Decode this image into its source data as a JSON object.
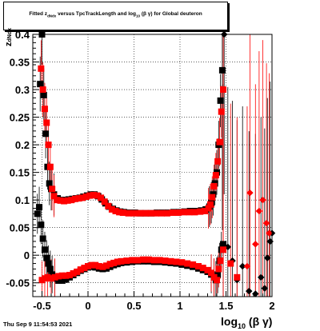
{
  "header": {
    "title_pre": "Fitted  z",
    "title_sub": "dNdx",
    "title_mid": "  versus TpcTrackLength and log",
    "title_sub2": "10",
    "title_post": " (β γ) for Global deuteron"
  },
  "footer": {
    "timestamp": "Thu Sep  9 11:54:53 2021"
  },
  "axes": {
    "xlabel_main": "log",
    "xlabel_sub": "10",
    "xlabel_tail": " (β γ)",
    "ylabel_main": "z",
    "ylabel_sub": "dNdx"
  },
  "colors": {
    "series_black": "#000000",
    "series_red": "#ff0000",
    "grid": "#000000"
  },
  "chart_data": {
    "type": "scatter",
    "xlim": [
      -0.6,
      2.0
    ],
    "ylim": [
      -0.075,
      0.4
    ],
    "xticks": [
      -0.5,
      0,
      0.5,
      1,
      1.5,
      2
    ],
    "xtick_labels": [
      "-0.5",
      "0",
      "0.5",
      "1",
      "1.5",
      "2"
    ],
    "yticks": [
      -0.05,
      0,
      0.05,
      0.1,
      0.15,
      0.2,
      0.25,
      0.3,
      0.35,
      0.4
    ],
    "ytick_labels": [
      "-0.05",
      "0",
      "0.05",
      "0.1",
      "0.15",
      "0.2",
      "0.25",
      "0.3",
      "0.35",
      "0.4"
    ],
    "grid": true,
    "series": [
      {
        "color": "#000000",
        "marker": "square",
        "points": [
          [
            -0.52,
            0.31
          ],
          [
            -0.5,
            0.4
          ],
          [
            -0.48,
            0.29
          ],
          [
            -0.46,
            0.22
          ],
          [
            -0.44,
            0.16
          ],
          [
            -0.42,
            0.13
          ],
          [
            -0.4,
            0.12
          ],
          [
            -0.37,
            0.11
          ],
          [
            -0.33,
            0.103
          ],
          [
            -0.29,
            0.1
          ],
          [
            -0.25,
            0.1
          ],
          [
            -0.21,
            0.101
          ],
          [
            -0.17,
            0.102
          ],
          [
            -0.13,
            0.103
          ],
          [
            -0.09,
            0.104
          ],
          [
            -0.05,
            0.106
          ],
          [
            -0.01,
            0.108
          ],
          [
            0.03,
            0.11
          ],
          [
            0.07,
            0.11
          ],
          [
            0.11,
            0.107
          ],
          [
            0.15,
            0.101
          ],
          [
            0.19,
            0.094
          ],
          [
            0.23,
            0.088
          ],
          [
            0.27,
            0.084
          ],
          [
            0.31,
            0.081
          ],
          [
            0.35,
            0.079
          ],
          [
            0.39,
            0.078
          ],
          [
            0.45,
            0.077
          ],
          [
            0.51,
            0.077
          ],
          [
            0.57,
            0.076
          ],
          [
            0.63,
            0.076
          ],
          [
            0.69,
            0.076
          ],
          [
            0.75,
            0.077
          ],
          [
            0.81,
            0.077
          ],
          [
            0.87,
            0.077
          ],
          [
            0.93,
            0.078
          ],
          [
            0.99,
            0.078
          ],
          [
            1.05,
            0.079
          ],
          [
            1.11,
            0.08
          ],
          [
            1.17,
            0.08
          ],
          [
            1.23,
            0.081
          ],
          [
            1.28,
            0.083
          ],
          [
            1.32,
            0.088
          ],
          [
            1.34,
            0.095
          ],
          [
            1.36,
            0.11
          ],
          [
            1.38,
            0.13
          ],
          [
            1.4,
            0.15
          ],
          [
            1.42,
            0.2
          ],
          [
            1.44,
            0.28
          ],
          [
            1.46,
            0.335
          ],
          [
            1.48,
            0.4
          ],
          [
            -0.55,
            0.075
          ],
          [
            -0.53,
            0.087
          ],
          [
            -0.51,
            0.055
          ],
          [
            -0.49,
            0.03
          ],
          [
            -0.47,
            0.01
          ],
          [
            -0.45,
            -0.005
          ],
          [
            -0.43,
            -0.015
          ],
          [
            -0.41,
            -0.025
          ],
          [
            -0.39,
            -0.035
          ],
          [
            -0.36,
            -0.042
          ],
          [
            -0.32,
            -0.046
          ],
          [
            -0.28,
            -0.046
          ],
          [
            -0.24,
            -0.044
          ],
          [
            -0.2,
            -0.04
          ],
          [
            -0.16,
            -0.036
          ],
          [
            -0.12,
            -0.032
          ],
          [
            -0.08,
            -0.028
          ],
          [
            -0.04,
            -0.025
          ],
          [
            0.0,
            -0.022
          ],
          [
            0.04,
            -0.021
          ],
          [
            0.08,
            -0.022
          ],
          [
            0.12,
            -0.024
          ],
          [
            0.16,
            -0.025
          ],
          [
            0.2,
            -0.024
          ],
          [
            0.24,
            -0.021
          ],
          [
            0.28,
            -0.018
          ],
          [
            0.32,
            -0.016
          ],
          [
            0.36,
            -0.014
          ],
          [
            0.42,
            -0.013
          ],
          [
            0.48,
            -0.012
          ],
          [
            0.54,
            -0.011
          ],
          [
            0.6,
            -0.011
          ],
          [
            0.66,
            -0.011
          ],
          [
            0.72,
            -0.012
          ],
          [
            0.78,
            -0.012
          ],
          [
            0.84,
            -0.013
          ],
          [
            0.9,
            -0.014
          ],
          [
            0.96,
            -0.015
          ],
          [
            1.02,
            -0.017
          ],
          [
            1.08,
            -0.019
          ],
          [
            1.14,
            -0.021
          ],
          [
            1.2,
            -0.024
          ],
          [
            1.25,
            -0.027
          ],
          [
            1.3,
            -0.03
          ],
          [
            1.34,
            -0.035
          ],
          [
            1.37,
            -0.04
          ],
          [
            1.39,
            -0.045
          ],
          [
            1.41,
            -0.035
          ],
          [
            1.43,
            -0.01
          ],
          [
            1.45,
            0.01
          ],
          [
            1.47,
            0.02
          ],
          [
            1.52,
            0.015
          ],
          [
            1.57,
            -0.01
          ],
          [
            1.62,
            -0.045
          ],
          [
            1.68,
            -0.02
          ],
          [
            1.75,
            -0.065
          ],
          [
            1.82,
            -0.07
          ],
          [
            1.88,
            -0.04
          ],
          [
            1.92,
            -0.06
          ],
          [
            1.95,
            -0.005
          ],
          [
            1.98,
            0.025
          ],
          [
            2.0,
            0.04
          ]
        ]
      },
      {
        "color": "#ff0000",
        "marker": "square",
        "points": [
          [
            -0.51,
            0.338
          ],
          [
            -0.49,
            0.3
          ],
          [
            -0.47,
            0.265
          ],
          [
            -0.45,
            0.24
          ],
          [
            -0.43,
            0.2
          ],
          [
            -0.41,
            0.16
          ],
          [
            -0.39,
            0.12
          ],
          [
            -0.37,
            0.107
          ],
          [
            -0.34,
            0.1
          ],
          [
            -0.3,
            0.099
          ],
          [
            -0.26,
            0.098
          ],
          [
            -0.22,
            0.099
          ],
          [
            -0.18,
            0.1
          ],
          [
            -0.14,
            0.102
          ],
          [
            -0.1,
            0.103
          ],
          [
            -0.06,
            0.104
          ],
          [
            -0.02,
            0.106
          ],
          [
            0.02,
            0.108
          ],
          [
            0.06,
            0.109
          ],
          [
            0.1,
            0.108
          ],
          [
            0.14,
            0.104
          ],
          [
            0.18,
            0.097
          ],
          [
            0.22,
            0.089
          ],
          [
            0.26,
            0.083
          ],
          [
            0.3,
            0.08
          ],
          [
            0.34,
            0.078
          ],
          [
            0.38,
            0.077
          ],
          [
            0.44,
            0.076
          ],
          [
            0.5,
            0.076
          ],
          [
            0.56,
            0.076
          ],
          [
            0.62,
            0.076
          ],
          [
            0.68,
            0.076
          ],
          [
            0.74,
            0.076
          ],
          [
            0.8,
            0.076
          ],
          [
            0.86,
            0.076
          ],
          [
            0.92,
            0.077
          ],
          [
            0.98,
            0.077
          ],
          [
            1.04,
            0.078
          ],
          [
            1.1,
            0.078
          ],
          [
            1.16,
            0.078
          ],
          [
            1.22,
            0.079
          ],
          [
            1.27,
            0.08
          ],
          [
            1.31,
            0.085
          ],
          [
            1.33,
            0.092
          ],
          [
            1.35,
            0.105
          ],
          [
            1.37,
            0.125
          ],
          [
            1.39,
            0.145
          ],
          [
            1.41,
            0.17
          ],
          [
            1.43,
            0.205
          ],
          [
            1.45,
            0.26
          ],
          [
            1.47,
            0.3
          ],
          [
            -0.5,
            -0.045
          ],
          [
            -0.47,
            -0.042
          ],
          [
            -0.44,
            -0.04
          ],
          [
            -0.4,
            -0.042
          ],
          [
            -0.36,
            -0.04
          ],
          [
            -0.32,
            -0.038
          ],
          [
            -0.28,
            -0.037
          ],
          [
            -0.24,
            -0.037
          ],
          [
            -0.2,
            -0.036
          ],
          [
            -0.16,
            -0.033
          ],
          [
            -0.12,
            -0.03
          ],
          [
            -0.08,
            -0.026
          ],
          [
            -0.04,
            -0.023
          ],
          [
            0.0,
            -0.02
          ],
          [
            0.04,
            -0.018
          ],
          [
            0.08,
            -0.018
          ],
          [
            0.12,
            -0.02
          ],
          [
            0.16,
            -0.021
          ],
          [
            0.2,
            -0.019
          ],
          [
            0.24,
            -0.016
          ],
          [
            0.28,
            -0.014
          ],
          [
            0.32,
            -0.012
          ],
          [
            0.36,
            -0.011
          ],
          [
            0.42,
            -0.01
          ],
          [
            0.48,
            -0.009
          ],
          [
            0.54,
            -0.009
          ],
          [
            0.6,
            -0.008
          ],
          [
            0.66,
            -0.008
          ],
          [
            0.72,
            -0.009
          ],
          [
            0.78,
            -0.009
          ],
          [
            0.84,
            -0.01
          ],
          [
            0.9,
            -0.011
          ],
          [
            0.96,
            -0.012
          ],
          [
            1.02,
            -0.013
          ],
          [
            1.08,
            -0.015
          ],
          [
            1.14,
            -0.017
          ],
          [
            1.2,
            -0.02
          ],
          [
            1.25,
            -0.023
          ],
          [
            1.3,
            -0.027
          ],
          [
            1.34,
            -0.032
          ],
          [
            1.37,
            -0.04
          ],
          [
            1.4,
            -0.045
          ],
          [
            1.42,
            -0.025
          ],
          [
            1.44,
            -0.01
          ],
          [
            1.47,
            0.01
          ],
          [
            1.55,
            -0.015
          ],
          [
            1.62,
            -0.04
          ],
          [
            1.73,
            -0.02
          ],
          [
            1.76,
            0.113
          ],
          [
            1.82,
            0.02
          ],
          [
            1.86,
            0.08
          ],
          [
            1.9,
            0.1
          ],
          [
            1.94,
            0.058
          ],
          [
            1.97,
            0.04
          ]
        ]
      }
    ]
  }
}
